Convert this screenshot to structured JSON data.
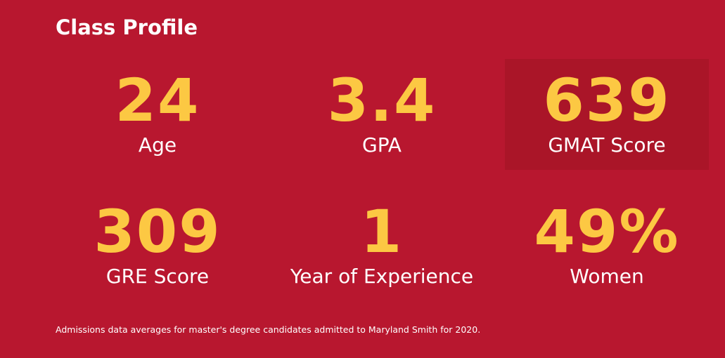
{
  "header": {
    "title": "Class Profile"
  },
  "stats": [
    {
      "value": 24,
      "label": "Age"
    },
    {
      "value": 3.4,
      "label": "GPA"
    },
    {
      "value": 639,
      "label": "GMAT Score"
    },
    {
      "value": 309,
      "label": "GRE Score"
    },
    {
      "value": 1,
      "label": "Year of Experience"
    },
    {
      "value": "49%",
      "label": "Women"
    }
  ],
  "footnote": "Admissions data averages for master's degree candidates admitted to Maryland Smith for 2020."
}
